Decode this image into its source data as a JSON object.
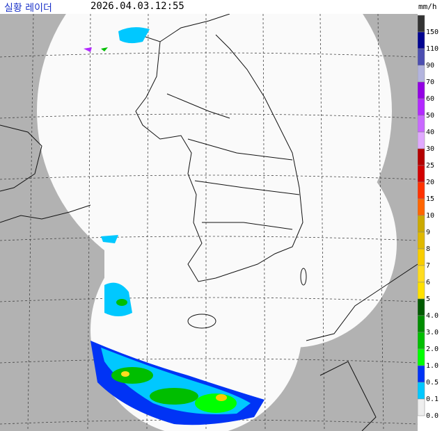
{
  "header": {
    "title": "실황 레이더",
    "timestamp": "2026.04.03.12:55",
    "unit": "mm/h"
  },
  "legend": [
    {
      "label": "150",
      "color": "#333333"
    },
    {
      "label": "110",
      "color": "#000390"
    },
    {
      "label": "90",
      "color": "#4c4eb1"
    },
    {
      "label": "70",
      "color": "#b3b4de"
    },
    {
      "label": "60",
      "color": "#9300e4"
    },
    {
      "label": "50",
      "color": "#b329ff"
    },
    {
      "label": "40",
      "color": "#c969ff"
    },
    {
      "label": "30",
      "color": "#e0a9ff"
    },
    {
      "label": "25",
      "color": "#b40000"
    },
    {
      "label": "20",
      "color": "#d20000"
    },
    {
      "label": "15",
      "color": "#ff3200"
    },
    {
      "label": "10",
      "color": "#ff6600"
    },
    {
      "label": "9",
      "color": "#ccaa00"
    },
    {
      "label": "8",
      "color": "#e0b900"
    },
    {
      "label": "7",
      "color": "#f9cd00"
    },
    {
      "label": "6",
      "color": "#ffdc1f"
    },
    {
      "label": "5",
      "color": "#ffe100"
    },
    {
      "label": "4.0",
      "color": "#005a00"
    },
    {
      "label": "3.0",
      "color": "#008c00"
    },
    {
      "label": "2.0",
      "color": "#00be00"
    },
    {
      "label": "1.0",
      "color": "#00ff00"
    },
    {
      "label": "0.5",
      "color": "#0033f5"
    },
    {
      "label": "0.1",
      "color": "#00c8ff"
    },
    {
      "label": "0.0",
      "color": "#eeeeee"
    }
  ]
}
